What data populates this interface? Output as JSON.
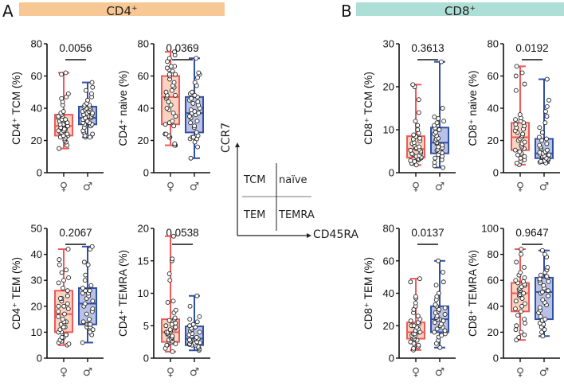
{
  "panels": {
    "A": {
      "letter": "A",
      "banner": "CD4",
      "banner_sup": "+",
      "banner_color": "#f8c894"
    },
    "B": {
      "letter": "B",
      "banner": "CD8",
      "banner_sup": "+",
      "banner_color": "#aedfd6"
    }
  },
  "colors": {
    "female": "#f0585a",
    "female_fill": "#fbd3bf",
    "male": "#2f4fa8",
    "male_fill": "#b9c2e6"
  },
  "schematic": {
    "y_axis_label": "CCR7",
    "x_axis_label": "CD45RA",
    "quadrants": [
      "TCM",
      "naïve",
      "TEM",
      "TEMRA"
    ]
  },
  "chart_data": [
    {
      "id": "cd4-tcm",
      "type": "box",
      "ylabel": "CD4⁺ TCM (%)",
      "ylim": [
        0,
        80
      ],
      "yticks": [
        0,
        20,
        40,
        60,
        80
      ],
      "categories": [
        "♀",
        "♂"
      ],
      "p_value": "0.0056",
      "series": [
        {
          "name": "female",
          "min": 15,
          "q1": 23,
          "median": 29,
          "q3": 36,
          "max": 62,
          "points": [
            15,
            17,
            19,
            20,
            21,
            22,
            22,
            23,
            23,
            24,
            24,
            25,
            25,
            26,
            26,
            27,
            27,
            28,
            28,
            29,
            29,
            30,
            30,
            31,
            31,
            32,
            33,
            33,
            34,
            35,
            35,
            36,
            37,
            38,
            42,
            44,
            46,
            47,
            49,
            61,
            62
          ]
        },
        {
          "name": "male",
          "min": 22,
          "q1": 30,
          "median": 34,
          "q3": 41,
          "max": 56,
          "points": [
            22,
            22,
            23,
            23,
            24,
            25,
            26,
            28,
            29,
            30,
            30,
            31,
            31,
            32,
            33,
            33,
            34,
            34,
            35,
            35,
            36,
            36,
            37,
            37,
            38,
            38,
            39,
            39,
            40,
            40,
            41,
            41,
            42,
            42,
            43,
            45,
            47,
            49,
            51,
            53,
            56
          ]
        }
      ]
    },
    {
      "id": "cd4-naive",
      "type": "box",
      "ylabel": "CD4⁺ naive (%)",
      "ylim": [
        0,
        80
      ],
      "yticks": [
        0,
        20,
        40,
        60,
        80
      ],
      "categories": [
        "♀",
        "♂"
      ],
      "p_value": "0.0369",
      "series": [
        {
          "name": "female",
          "min": 17,
          "q1": 30,
          "median": 47,
          "q3": 60,
          "max": 75,
          "points": [
            17,
            17,
            18,
            22,
            22,
            23,
            24,
            24,
            29,
            30,
            31,
            32,
            35,
            37,
            39,
            40,
            42,
            44,
            46,
            47,
            48,
            48,
            50,
            51,
            53,
            54,
            56,
            58,
            60,
            61,
            61,
            63,
            64,
            65,
            66,
            66,
            69,
            71,
            73,
            75
          ]
        },
        {
          "name": "male",
          "min": 9,
          "q1": 25,
          "median": 37,
          "q3": 47,
          "max": 71,
          "points": [
            9,
            16,
            19,
            21,
            21,
            22,
            22,
            23,
            25,
            28,
            29,
            31,
            32,
            34,
            35,
            36,
            37,
            37,
            38,
            39,
            40,
            42,
            43,
            44,
            45,
            46,
            47,
            48,
            49,
            50,
            54,
            56,
            59,
            61,
            62,
            71
          ]
        }
      ]
    },
    {
      "id": "cd4-tem",
      "type": "box",
      "ylabel": "CD4⁺ TEM (%)",
      "ylim": [
        0,
        50
      ],
      "yticks": [
        0,
        10,
        20,
        30,
        40,
        50
      ],
      "categories": [
        "♀",
        "♂"
      ],
      "p_value": "0.2067",
      "series": [
        {
          "name": "female",
          "min": 5,
          "q1": 10,
          "median": 17,
          "q3": 26,
          "max": 42,
          "points": [
            5,
            5.5,
            6,
            6.5,
            7,
            8,
            8,
            9,
            9,
            10,
            10,
            11,
            12,
            12,
            13,
            14,
            14,
            15,
            16,
            17,
            18,
            19,
            20,
            20,
            21,
            22,
            23,
            23,
            24,
            26,
            27,
            29,
            30,
            31,
            33,
            34,
            36,
            38,
            42
          ]
        },
        {
          "name": "male",
          "min": 6,
          "q1": 13,
          "median": 21,
          "q3": 27,
          "max": 43,
          "points": [
            6,
            9,
            10,
            11,
            12,
            12,
            12,
            13,
            13,
            13,
            14,
            15,
            17,
            18,
            19,
            20,
            21,
            22,
            23,
            24,
            25,
            25,
            26,
            26,
            27,
            28,
            30,
            32,
            36,
            37,
            42,
            43
          ]
        }
      ]
    },
    {
      "id": "cd4-temra",
      "type": "box",
      "ylabel": "CD4⁺ TEMRA (%)",
      "ylim": [
        0,
        20
      ],
      "yticks": [
        0,
        5,
        10,
        15,
        20
      ],
      "categories": [
        "♀",
        "♂"
      ],
      "p_value": "0.0538",
      "series": [
        {
          "name": "female",
          "min": 1,
          "q1": 2.5,
          "median": 4,
          "q3": 6,
          "max": 18.8,
          "points": [
            1,
            1.5,
            2,
            2,
            2.2,
            2.4,
            2.6,
            2.8,
            3,
            3,
            3.2,
            3.4,
            3.6,
            3.8,
            4,
            4,
            4.2,
            4.4,
            4.6,
            4.8,
            5,
            5.2,
            5.4,
            5.8,
            6,
            6.2,
            7,
            7.4,
            8.6,
            8.8,
            12,
            13,
            15,
            15.3,
            18.8
          ]
        },
        {
          "name": "male",
          "min": 1.2,
          "q1": 2,
          "median": 3,
          "q3": 4.9,
          "max": 9.6,
          "points": [
            1.2,
            1.4,
            1.6,
            1.8,
            2,
            2,
            2.1,
            2.2,
            2.3,
            2.4,
            2.5,
            2.6,
            2.8,
            3,
            3,
            3.2,
            3.4,
            3.6,
            3.8,
            4,
            4.2,
            4.4,
            4.6,
            4.8,
            5,
            5.2,
            5.6,
            6,
            6.4,
            8,
            9.6
          ]
        }
      ]
    },
    {
      "id": "cd8-tcm",
      "type": "box",
      "ylabel": "CD8⁺ TCM (%)",
      "ylim": [
        0,
        30
      ],
      "yticks": [
        0,
        10,
        20,
        30
      ],
      "categories": [
        "♀",
        "♂"
      ],
      "p_value": "0.3613",
      "series": [
        {
          "name": "female",
          "min": 1.8,
          "q1": 3.5,
          "median": 5.5,
          "q3": 8.5,
          "max": 20.5,
          "points": [
            1.8,
            2.2,
            2.6,
            2.8,
            3,
            3.2,
            3.4,
            3.6,
            3.8,
            4,
            4.2,
            4.4,
            4.6,
            5,
            5.2,
            5.4,
            5.6,
            5.8,
            6,
            6.4,
            6.8,
            7,
            7.4,
            7.8,
            8,
            8.4,
            8.8,
            9.2,
            10,
            11,
            12,
            14,
            17,
            20,
            20.5
          ]
        },
        {
          "name": "male",
          "min": 1.2,
          "q1": 4.5,
          "median": 7,
          "q3": 10.5,
          "max": 25.8,
          "points": [
            1.2,
            1.6,
            2.4,
            3,
            3.4,
            3.8,
            4.2,
            4.6,
            5,
            5.2,
            5.4,
            5.6,
            5.8,
            6,
            6.4,
            6.8,
            7,
            7.4,
            7.8,
            8,
            8.6,
            9,
            9.4,
            10,
            10.4,
            11,
            11.6,
            12,
            12.6,
            13,
            15,
            25.8
          ]
        }
      ]
    },
    {
      "id": "cd8-naive",
      "type": "box",
      "ylabel": "CD8⁺ naive (%)",
      "ylim": [
        0,
        80
      ],
      "yticks": [
        0,
        20,
        40,
        60,
        80
      ],
      "categories": [
        "♀",
        "♂"
      ],
      "p_value": "0.0192",
      "series": [
        {
          "name": "female",
          "min": 5,
          "q1": 14,
          "median": 22,
          "q3": 31,
          "max": 66,
          "points": [
            5,
            6,
            7,
            8,
            9,
            10,
            11,
            12,
            13,
            14,
            15,
            16,
            17,
            18,
            19,
            20,
            21,
            22,
            23,
            24,
            25,
            26,
            27,
            28,
            29,
            30,
            31,
            32,
            33,
            34,
            36,
            51,
            55,
            60,
            62,
            66
          ]
        },
        {
          "name": "male",
          "min": 6,
          "q1": 9,
          "median": 12,
          "q3": 21,
          "max": 58,
          "points": [
            6,
            6.5,
            7,
            7.5,
            8,
            8.5,
            9,
            9.5,
            10,
            10.5,
            11,
            11.5,
            12,
            12.5,
            13,
            14,
            15,
            16,
            17,
            18,
            20,
            21,
            22,
            25,
            28,
            31,
            35,
            38,
            41,
            45,
            58
          ]
        }
      ]
    },
    {
      "id": "cd8-tem",
      "type": "box",
      "ylabel": "CD8⁺ TEM (%)",
      "ylim": [
        0,
        80
      ],
      "yticks": [
        0,
        20,
        40,
        60,
        80
      ],
      "categories": [
        "♀",
        "♂"
      ],
      "p_value": "0.0137",
      "series": [
        {
          "name": "female",
          "min": 5,
          "q1": 12,
          "median": 16,
          "q3": 22,
          "max": 49,
          "points": [
            5,
            6,
            7,
            8,
            9,
            10,
            11,
            12,
            12,
            13,
            14,
            14,
            15,
            15,
            16,
            16,
            17,
            18,
            19,
            20,
            20,
            21,
            22,
            23,
            24,
            26,
            28,
            30,
            32,
            34,
            37,
            38,
            47,
            49
          ]
        },
        {
          "name": "male",
          "min": 6.5,
          "q1": 16,
          "median": 24,
          "q3": 32,
          "max": 60,
          "points": [
            6.5,
            9,
            11,
            13,
            14,
            15,
            16,
            17,
            18,
            19,
            20,
            21,
            22,
            23,
            24,
            24,
            25,
            26,
            27,
            28,
            29,
            30,
            31,
            32,
            33,
            36,
            38,
            40,
            45,
            47,
            53,
            60
          ]
        }
      ]
    },
    {
      "id": "cd8-temra",
      "type": "box",
      "ylabel": "CD8⁺ TEMRA (%)",
      "ylim": [
        0,
        100
      ],
      "yticks": [
        0,
        20,
        40,
        60,
        80,
        100
      ],
      "categories": [
        "♀",
        "♂"
      ],
      "p_value": "0.9647",
      "series": [
        {
          "name": "female",
          "min": 14,
          "q1": 36,
          "median": 50,
          "q3": 58,
          "max": 84,
          "points": [
            14,
            16,
            18,
            20,
            22,
            25,
            27,
            30,
            33,
            36,
            38,
            40,
            42,
            44,
            46,
            48,
            49,
            50,
            51,
            52,
            53,
            54,
            55,
            56,
            57,
            58,
            59,
            60,
            62,
            64,
            66,
            70,
            74,
            80,
            84
          ]
        },
        {
          "name": "male",
          "min": 17,
          "q1": 30,
          "median": 51,
          "q3": 62,
          "max": 83,
          "points": [
            17,
            20,
            22,
            24,
            26,
            27,
            29,
            30,
            32,
            35,
            37,
            39,
            41,
            43,
            45,
            48,
            50,
            51,
            52,
            54,
            56,
            58,
            59,
            60,
            61,
            62,
            63,
            64,
            66,
            68,
            70,
            78,
            80,
            83
          ]
        }
      ]
    }
  ]
}
